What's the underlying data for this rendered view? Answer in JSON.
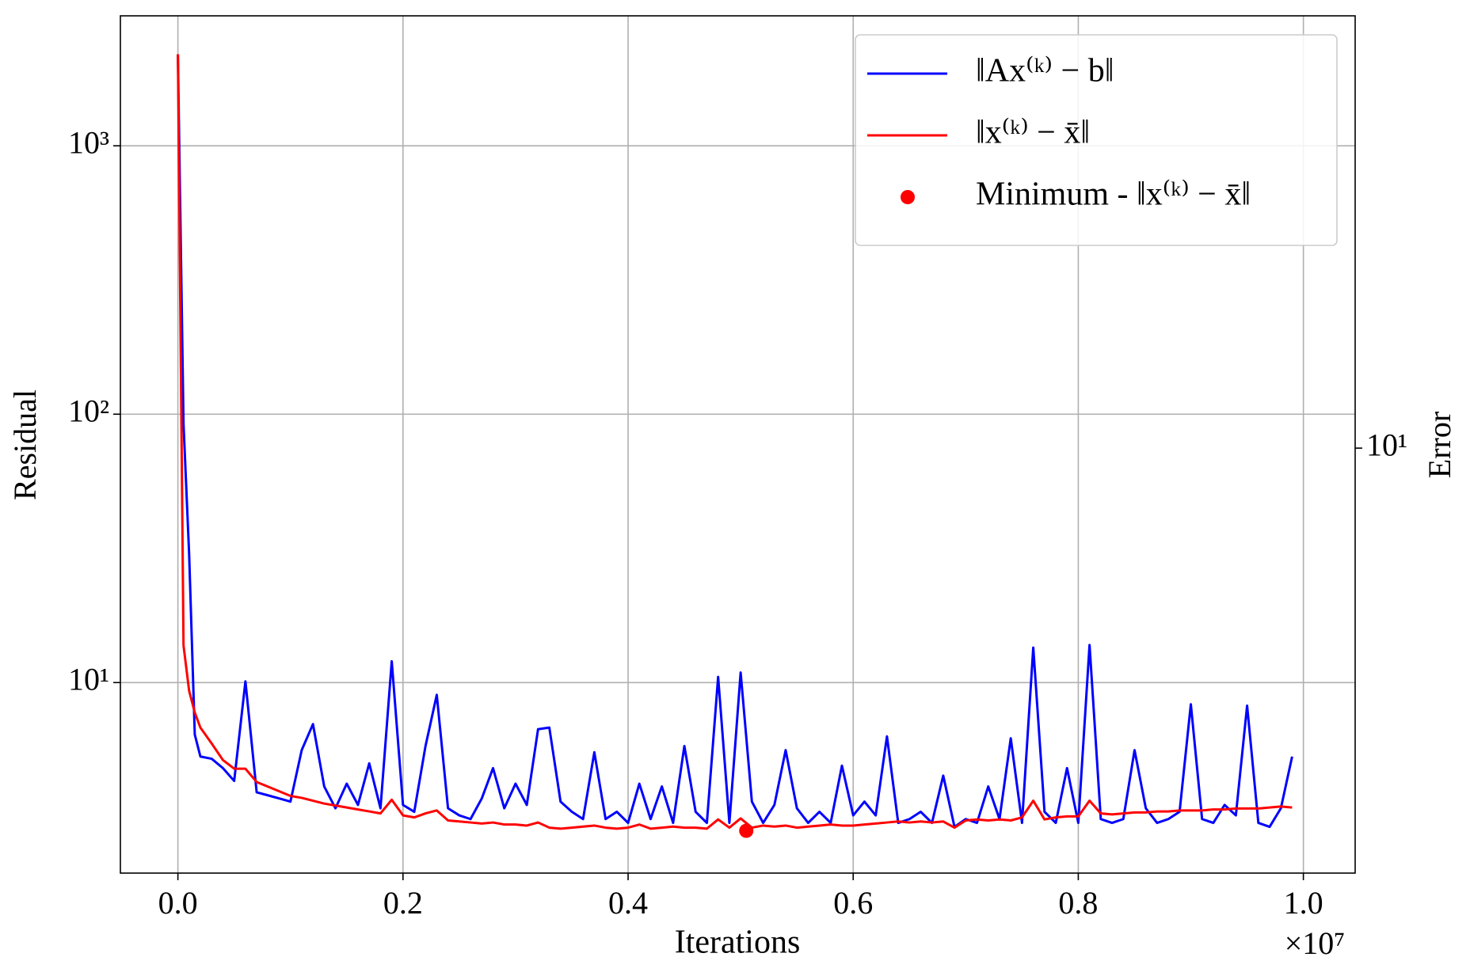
{
  "chart_data": {
    "type": "line",
    "xlabel": "Iterations",
    "ylabel": "Residual",
    "y2label": "Error",
    "x_offset_label": "×10⁷",
    "ylabel_color": "#0000ff",
    "y2label_color": "#ff0000",
    "log_y": true,
    "log_y2": true,
    "grid": true,
    "legend": "upper right",
    "xlim": [
      -511000,
      10460000
    ],
    "xticks": [
      {
        "value": 0,
        "label": "0.0"
      },
      {
        "value": 2000000,
        "label": "0.2"
      },
      {
        "value": 4000000,
        "label": "0.4"
      },
      {
        "value": 6000000,
        "label": "0.6"
      },
      {
        "value": 8000000,
        "label": "0.8"
      },
      {
        "value": 10000000,
        "label": "1.0"
      }
    ],
    "ylim": [
      1.95,
      3050
    ],
    "yticks": [
      {
        "value": 10,
        "label": "10¹"
      },
      {
        "value": 100,
        "label": "10²"
      },
      {
        "value": 1000,
        "label": "10³"
      }
    ],
    "y2lim": [
      2.87,
      35.6
    ],
    "y2ticks": [
      {
        "value": 10,
        "label": "10¹"
      }
    ],
    "x": [
      0,
      50000,
      100000,
      150000,
      200000,
      300000,
      400000,
      500000,
      600000,
      700000,
      800000,
      900000,
      1000000,
      1100000,
      1200000,
      1300000,
      1400000,
      1500000,
      1600000,
      1700000,
      1800000,
      1900000,
      2000000,
      2100000,
      2200000,
      2300000,
      2400000,
      2500000,
      2600000,
      2700000,
      2800000,
      2900000,
      3000000,
      3100000,
      3200000,
      3300000,
      3400000,
      3500000,
      3600000,
      3700000,
      3800000,
      3900000,
      4000000,
      4100000,
      4200000,
      4300000,
      4400000,
      4500000,
      4600000,
      4700000,
      4800000,
      4900000,
      5000000,
      5100000,
      5200000,
      5300000,
      5400000,
      5500000,
      5600000,
      5700000,
      5800000,
      5900000,
      6000000,
      6100000,
      6200000,
      6300000,
      6400000,
      6500000,
      6600000,
      6700000,
      6800000,
      6900000,
      7000000,
      7100000,
      7200000,
      7300000,
      7400000,
      7500000,
      7600000,
      7700000,
      7800000,
      7900000,
      8000000,
      8100000,
      8200000,
      8300000,
      8400000,
      8500000,
      8600000,
      8700000,
      8800000,
      8900000,
      9000000,
      9100000,
      9200000,
      9300000,
      9400000,
      9500000,
      9600000,
      9700000,
      9800000,
      9900000
    ],
    "series": [
      {
        "name": "‖Ax⁽ᵏ⁾ − b‖",
        "color": "#0000ff",
        "axis": "y",
        "type": "line",
        "values": [
          2190,
          92,
          30,
          6.4,
          5.3,
          5.2,
          4.8,
          4.3,
          10.1,
          3.9,
          3.8,
          3.7,
          3.6,
          5.6,
          7.0,
          4.1,
          3.4,
          4.2,
          3.5,
          5.0,
          3.4,
          12.0,
          3.5,
          3.3,
          5.8,
          9.0,
          3.4,
          3.2,
          3.1,
          3.7,
          4.8,
          3.4,
          4.2,
          3.5,
          6.7,
          6.8,
          3.6,
          3.3,
          3.1,
          5.5,
          3.1,
          3.3,
          3.0,
          4.2,
          3.1,
          4.1,
          3.0,
          5.8,
          3.3,
          3.0,
          10.5,
          3.0,
          10.9,
          3.6,
          3.0,
          3.5,
          5.6,
          3.4,
          3.0,
          3.3,
          3.0,
          4.9,
          3.2,
          3.6,
          3.2,
          6.3,
          3.0,
          3.1,
          3.3,
          3.0,
          4.5,
          2.9,
          3.1,
          3.0,
          4.1,
          3.1,
          6.2,
          3.0,
          13.5,
          3.3,
          3.0,
          4.8,
          3.0,
          13.8,
          3.1,
          3.0,
          3.1,
          5.6,
          3.4,
          3.0,
          3.1,
          3.3,
          8.3,
          3.1,
          3.0,
          3.5,
          3.2,
          8.2,
          3.0,
          2.9,
          3.4,
          5.3
        ]
      },
      {
        "name": "‖x⁽ᵏ⁾ − x̄‖",
        "color": "#ff0000",
        "axis": "y2",
        "type": "line",
        "values": [
          31.8,
          5.6,
          4.9,
          4.6,
          4.4,
          4.2,
          4.0,
          3.9,
          3.9,
          3.75,
          3.7,
          3.65,
          3.6,
          3.58,
          3.55,
          3.52,
          3.5,
          3.48,
          3.46,
          3.44,
          3.42,
          3.56,
          3.4,
          3.38,
          3.42,
          3.45,
          3.35,
          3.34,
          3.33,
          3.32,
          3.33,
          3.31,
          3.31,
          3.3,
          3.33,
          3.28,
          3.27,
          3.28,
          3.29,
          3.3,
          3.28,
          3.27,
          3.28,
          3.31,
          3.27,
          3.28,
          3.29,
          3.28,
          3.28,
          3.27,
          3.36,
          3.28,
          3.37,
          3.28,
          3.3,
          3.29,
          3.3,
          3.28,
          3.29,
          3.3,
          3.31,
          3.3,
          3.3,
          3.31,
          3.32,
          3.33,
          3.34,
          3.33,
          3.34,
          3.33,
          3.34,
          3.28,
          3.35,
          3.36,
          3.35,
          3.36,
          3.35,
          3.38,
          3.55,
          3.36,
          3.38,
          3.39,
          3.39,
          3.55,
          3.42,
          3.41,
          3.42,
          3.43,
          3.43,
          3.44,
          3.44,
          3.45,
          3.45,
          3.45,
          3.46,
          3.46,
          3.47,
          3.47,
          3.47,
          3.48,
          3.49,
          3.48
        ]
      },
      {
        "name": "Minimum - ‖x⁽ᵏ⁾ − x̄‖",
        "color": "#ff0000",
        "axis": "y2",
        "type": "scatter",
        "x": [
          5050000
        ],
        "values": [
          3.25
        ]
      }
    ]
  }
}
